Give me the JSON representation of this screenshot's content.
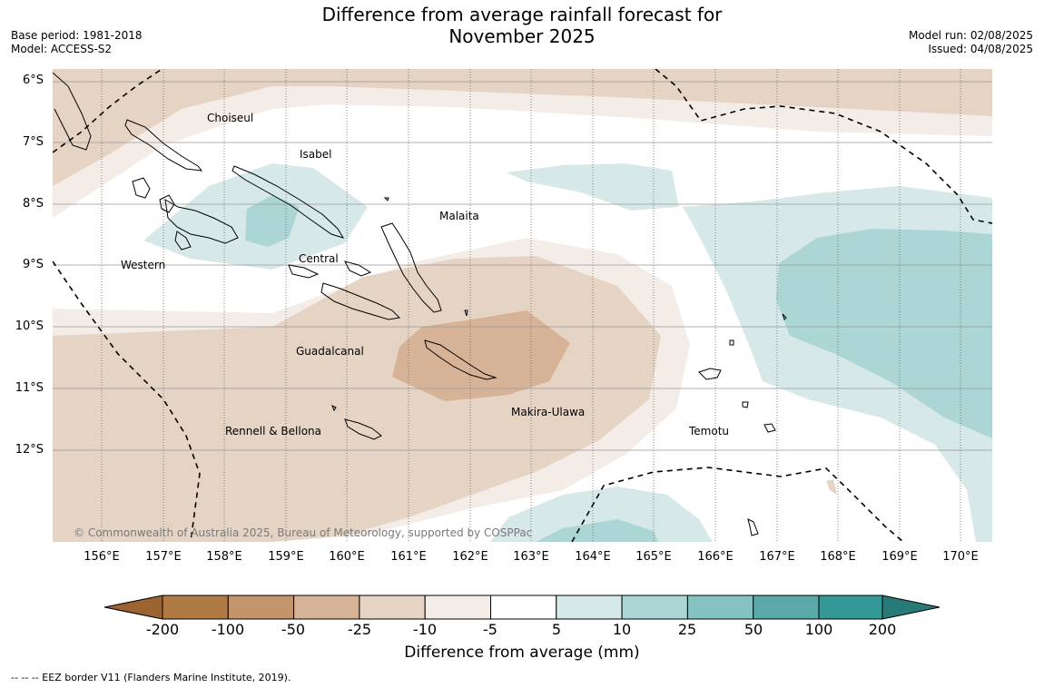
{
  "title_line1": "Difference from average rainfall forecast for",
  "title_line2": "November 2025",
  "base_period": "Base period: 1981-2018",
  "model": "Model: ACCESS-S2",
  "model_run": "Model run: 02/08/2025",
  "issued": "Issued: 04/08/2025",
  "lat_labels": [
    "6°S",
    "7°S",
    "8°S",
    "9°S",
    "10°S",
    "11°S",
    "12°S"
  ],
  "lon_labels": [
    "156°E",
    "157°E",
    "158°E",
    "159°E",
    "160°E",
    "161°E",
    "162°E",
    "163°E",
    "164°E",
    "165°E",
    "166°E",
    "167°E",
    "168°E",
    "169°E",
    "170°E"
  ],
  "regions": {
    "choiseul": "Choiseul",
    "isabel": "Isabel",
    "malaita": "Malaita",
    "western": "Western",
    "central": "Central",
    "guadalcanal": "Guadalcanal",
    "makira": "Makira-Ulawa",
    "rennell": "Rennell & Bellona",
    "temotu": "Temotu"
  },
  "copyright": "© Commonwealth of Australia 2025, Bureau of Meteorology, supported by COSPPac",
  "colorbar": {
    "ticks": [
      "-200",
      "-100",
      "-50",
      "-25",
      "-10",
      "-5",
      "5",
      "10",
      "25",
      "50",
      "100",
      "200"
    ],
    "colors": [
      "#9a6330",
      "#b07a44",
      "#c4956c",
      "#d6b396",
      "#e5d3c4",
      "#f4ece7",
      "#ffffff",
      "#d6e9e8",
      "#acd6d5",
      "#85c3c3",
      "#5aa9a8",
      "#349896",
      "#287a78"
    ],
    "title": "Difference from average (mm)"
  },
  "footnote": "--  --  -- EEZ border V11 (Flanders Marine Institute, 2019)."
}
